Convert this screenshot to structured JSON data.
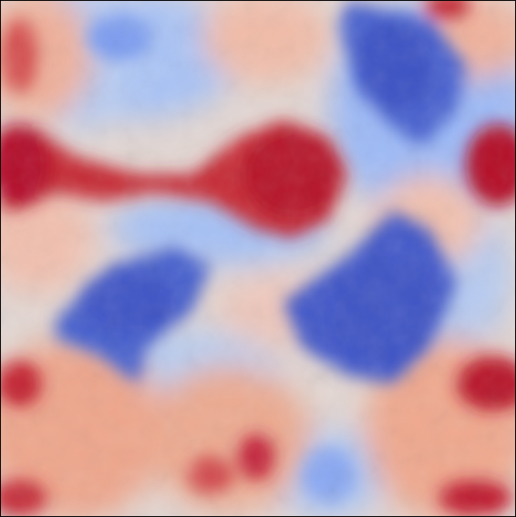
{
  "image": {
    "kind": "turbulent-field-heatmap",
    "colormap": "coolwarm",
    "colors": {
      "cold_deep": "#3b4cc0",
      "cold_mid": "#8db0fe",
      "neutral": "#dddcdc",
      "warm_mid": "#f49a7b",
      "warm_deep": "#b40426",
      "frame": "#000000"
    },
    "title": "",
    "axes_visible": false,
    "colorbar_visible": false
  }
}
